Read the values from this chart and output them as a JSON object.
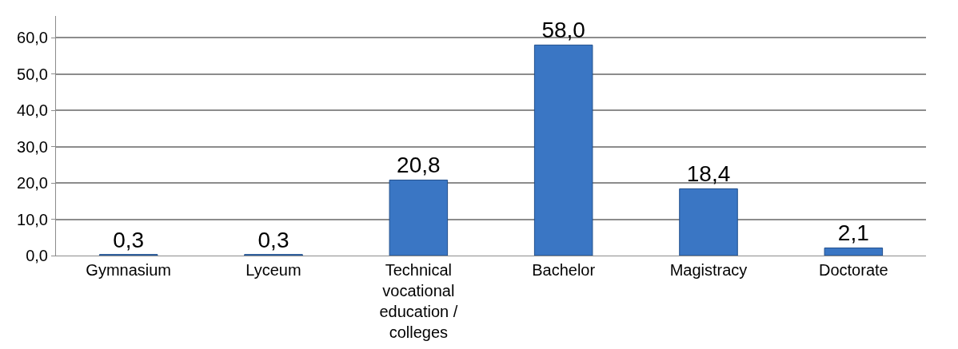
{
  "chart_data": {
    "type": "bar",
    "categories": [
      "Gymnasium",
      "Lyceum",
      "Technical vocational education / colleges",
      "Bachelor",
      "Magistracy",
      "Doctorate"
    ],
    "values": [
      0.3,
      0.3,
      20.8,
      58.0,
      18.4,
      2.1
    ],
    "value_labels": [
      "0,3",
      "0,3",
      "20,8",
      "58,0",
      "18,4",
      "2,1"
    ],
    "color": "#3a76c4",
    "ylim": [
      0,
      66
    ],
    "yticks": [
      {
        "value": 0,
        "label": "0,0"
      },
      {
        "value": 10,
        "label": "10,0"
      },
      {
        "value": 20,
        "label": "20,0"
      },
      {
        "value": 30,
        "label": "30,0"
      },
      {
        "value": 40,
        "label": "40,0"
      },
      {
        "value": 50,
        "label": "50,0"
      },
      {
        "value": 60,
        "label": "60,0"
      }
    ],
    "grid": "y",
    "legend": false
  }
}
